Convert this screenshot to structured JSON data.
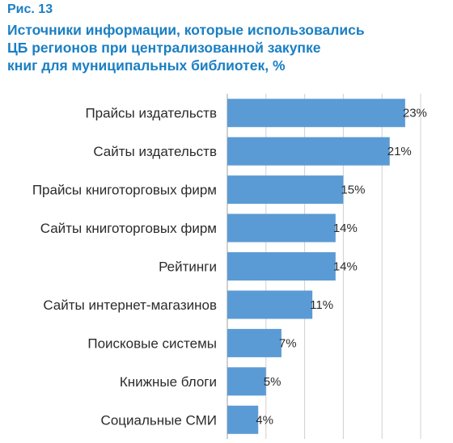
{
  "figure_label": "Рис. 13",
  "title_lines": [
    "Источники информации, которые использовались",
    "ЦБ регионов при централизованной закупке",
    "книг для муниципальных библиотек, %"
  ],
  "colors": {
    "title": "#1a7fc3",
    "bar": "#5b9bd5",
    "grid": "#d0d0d0"
  },
  "chart_data": {
    "type": "bar",
    "orientation": "horizontal",
    "title": "Источники информации, которые использовались ЦБ регионов при централизованной закупке книг для муниципальных библиотек, %",
    "categories": [
      "Прайсы издательств",
      "Сайты издательств",
      "Прайсы книготорговых фирм",
      "Сайты книготорговых фирм",
      "Рейтинги",
      "Сайты интернет-магазинов",
      "Поисковые системы",
      "Книжные блоги",
      "Социальные СМИ"
    ],
    "values": [
      23,
      21,
      15,
      14,
      14,
      11,
      7,
      5,
      4
    ],
    "value_labels": [
      "23%",
      "21%",
      "15%",
      "14%",
      "14%",
      "11%",
      "7%",
      "5%",
      "4%"
    ],
    "xlim": [
      0,
      25
    ],
    "grid": true
  }
}
